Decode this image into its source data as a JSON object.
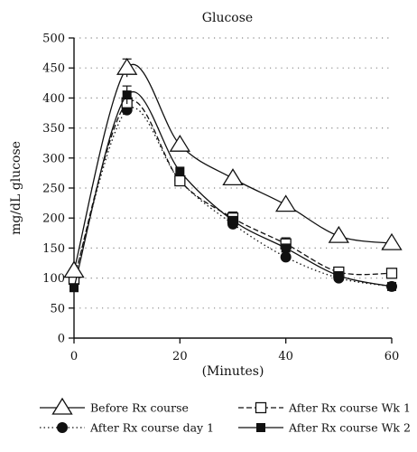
{
  "chart_data": {
    "type": "line",
    "title": "Glucose",
    "xlabel": "(Minutes)",
    "ylabel": "mg/dL glucose",
    "xlim": [
      0,
      60
    ],
    "ylim": [
      0,
      500
    ],
    "xticks": [
      "0",
      "20",
      "40",
      "60"
    ],
    "yticks": [
      "0",
      "50",
      "100",
      "150",
      "200",
      "250",
      "300",
      "350",
      "400",
      "450",
      "500"
    ],
    "grid": "horizontal dotted",
    "legend_position": "bottom",
    "series": [
      {
        "name": "Before Rx course",
        "marker": "open-triangle",
        "line": "solid",
        "x": [
          0,
          10,
          20,
          30,
          40,
          50,
          60
        ],
        "y": [
          112,
          450,
          322,
          266,
          222,
          170,
          158
        ],
        "error": [
          0,
          15,
          0,
          0,
          0,
          0,
          0
        ]
      },
      {
        "name": "After Rx course day 1",
        "marker": "filled-circle",
        "line": "dotted",
        "x": [
          0,
          10,
          20,
          30,
          40,
          50,
          60
        ],
        "y": [
          100,
          380,
          262,
          190,
          135,
          100,
          86
        ],
        "error": [
          0,
          0,
          0,
          0,
          0,
          0,
          0
        ]
      },
      {
        "name": "After Rx course Wk 1",
        "marker": "open-square",
        "line": "dashed",
        "x": [
          0,
          10,
          20,
          30,
          40,
          50,
          60
        ],
        "y": [
          98,
          392,
          262,
          200,
          157,
          110,
          108
        ],
        "error": [
          0,
          0,
          0,
          10,
          10,
          0,
          0
        ]
      },
      {
        "name": "After Rx course Wk 2",
        "marker": "filled-square",
        "line": "solid",
        "x": [
          0,
          10,
          20,
          30,
          40,
          50,
          60
        ],
        "y": [
          84,
          405,
          278,
          196,
          150,
          104,
          86
        ],
        "error": [
          0,
          15,
          0,
          0,
          0,
          0,
          0
        ]
      }
    ]
  }
}
